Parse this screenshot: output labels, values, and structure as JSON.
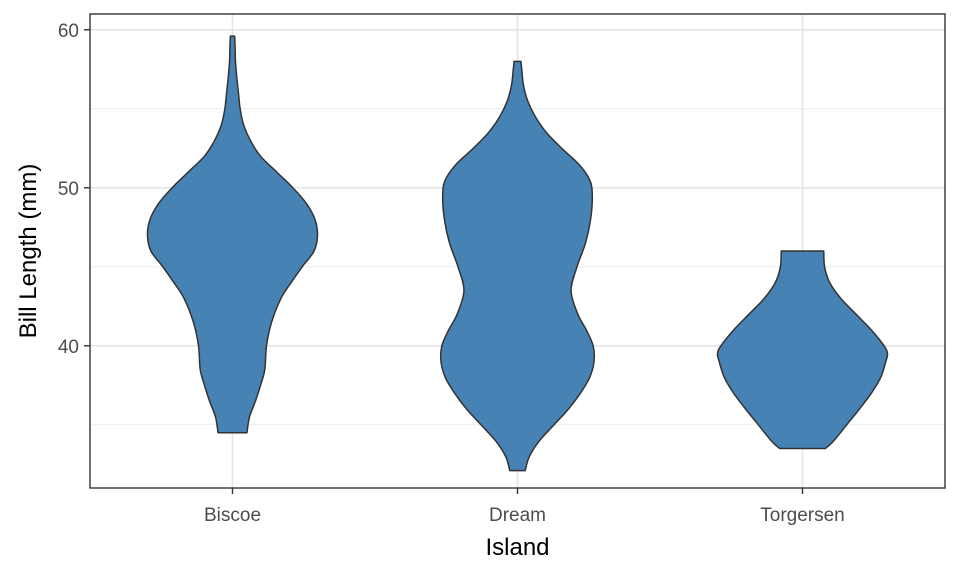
{
  "chart_data": {
    "type": "violin",
    "title": "",
    "xlabel": "Island",
    "ylabel": "Bill Length (mm)",
    "categories": [
      "Biscoe",
      "Dream",
      "Torgersen"
    ],
    "ylim": [
      31,
      61
    ],
    "yticks": [
      40,
      50,
      60
    ],
    "grid": true,
    "legend": "none",
    "fill_color": "#4682b4",
    "outline_color": "#333333",
    "violins": [
      {
        "category": "Biscoe",
        "min": 34.5,
        "max": 59.6,
        "profile": [
          [
            34.5,
            0.17
          ],
          [
            35.5,
            0.2
          ],
          [
            36.5,
            0.27
          ],
          [
            37.5,
            0.33
          ],
          [
            38.5,
            0.38
          ],
          [
            40.0,
            0.4
          ],
          [
            41.5,
            0.46
          ],
          [
            43.0,
            0.57
          ],
          [
            44.0,
            0.69
          ],
          [
            45.0,
            0.82
          ],
          [
            46.0,
            0.96
          ],
          [
            47.0,
            1.0
          ],
          [
            48.0,
            0.97
          ],
          [
            49.0,
            0.87
          ],
          [
            50.0,
            0.71
          ],
          [
            51.0,
            0.52
          ],
          [
            52.0,
            0.33
          ],
          [
            53.0,
            0.21
          ],
          [
            54.0,
            0.13
          ],
          [
            55.0,
            0.09
          ],
          [
            56.0,
            0.07
          ],
          [
            57.0,
            0.05
          ],
          [
            58.0,
            0.035
          ],
          [
            59.0,
            0.03
          ],
          [
            59.6,
            0.025
          ]
        ]
      },
      {
        "category": "Dream",
        "min": 32.1,
        "max": 58.0,
        "profile": [
          [
            32.1,
            0.09
          ],
          [
            33.0,
            0.14
          ],
          [
            34.0,
            0.26
          ],
          [
            35.0,
            0.43
          ],
          [
            36.0,
            0.6
          ],
          [
            37.0,
            0.74
          ],
          [
            38.0,
            0.85
          ],
          [
            39.0,
            0.9
          ],
          [
            40.0,
            0.89
          ],
          [
            41.0,
            0.81
          ],
          [
            42.0,
            0.71
          ],
          [
            43.5,
            0.63
          ],
          [
            45.0,
            0.7
          ],
          [
            46.5,
            0.8
          ],
          [
            48.0,
            0.86
          ],
          [
            49.5,
            0.88
          ],
          [
            50.5,
            0.85
          ],
          [
            51.5,
            0.72
          ],
          [
            52.5,
            0.52
          ],
          [
            53.5,
            0.34
          ],
          [
            54.5,
            0.21
          ],
          [
            55.5,
            0.12
          ],
          [
            56.5,
            0.07
          ],
          [
            57.5,
            0.05
          ],
          [
            58.0,
            0.04
          ]
        ]
      },
      {
        "category": "Torgersen",
        "min": 33.5,
        "max": 46.0,
        "profile": [
          [
            33.5,
            0.27
          ],
          [
            34.0,
            0.37
          ],
          [
            35.0,
            0.52
          ],
          [
            36.0,
            0.67
          ],
          [
            37.0,
            0.81
          ],
          [
            38.0,
            0.92
          ],
          [
            39.0,
            0.98
          ],
          [
            39.5,
            1.0
          ],
          [
            40.0,
            0.96
          ],
          [
            41.0,
            0.81
          ],
          [
            42.0,
            0.63
          ],
          [
            43.0,
            0.45
          ],
          [
            44.0,
            0.32
          ],
          [
            45.0,
            0.26
          ],
          [
            46.0,
            0.25
          ]
        ]
      }
    ]
  }
}
